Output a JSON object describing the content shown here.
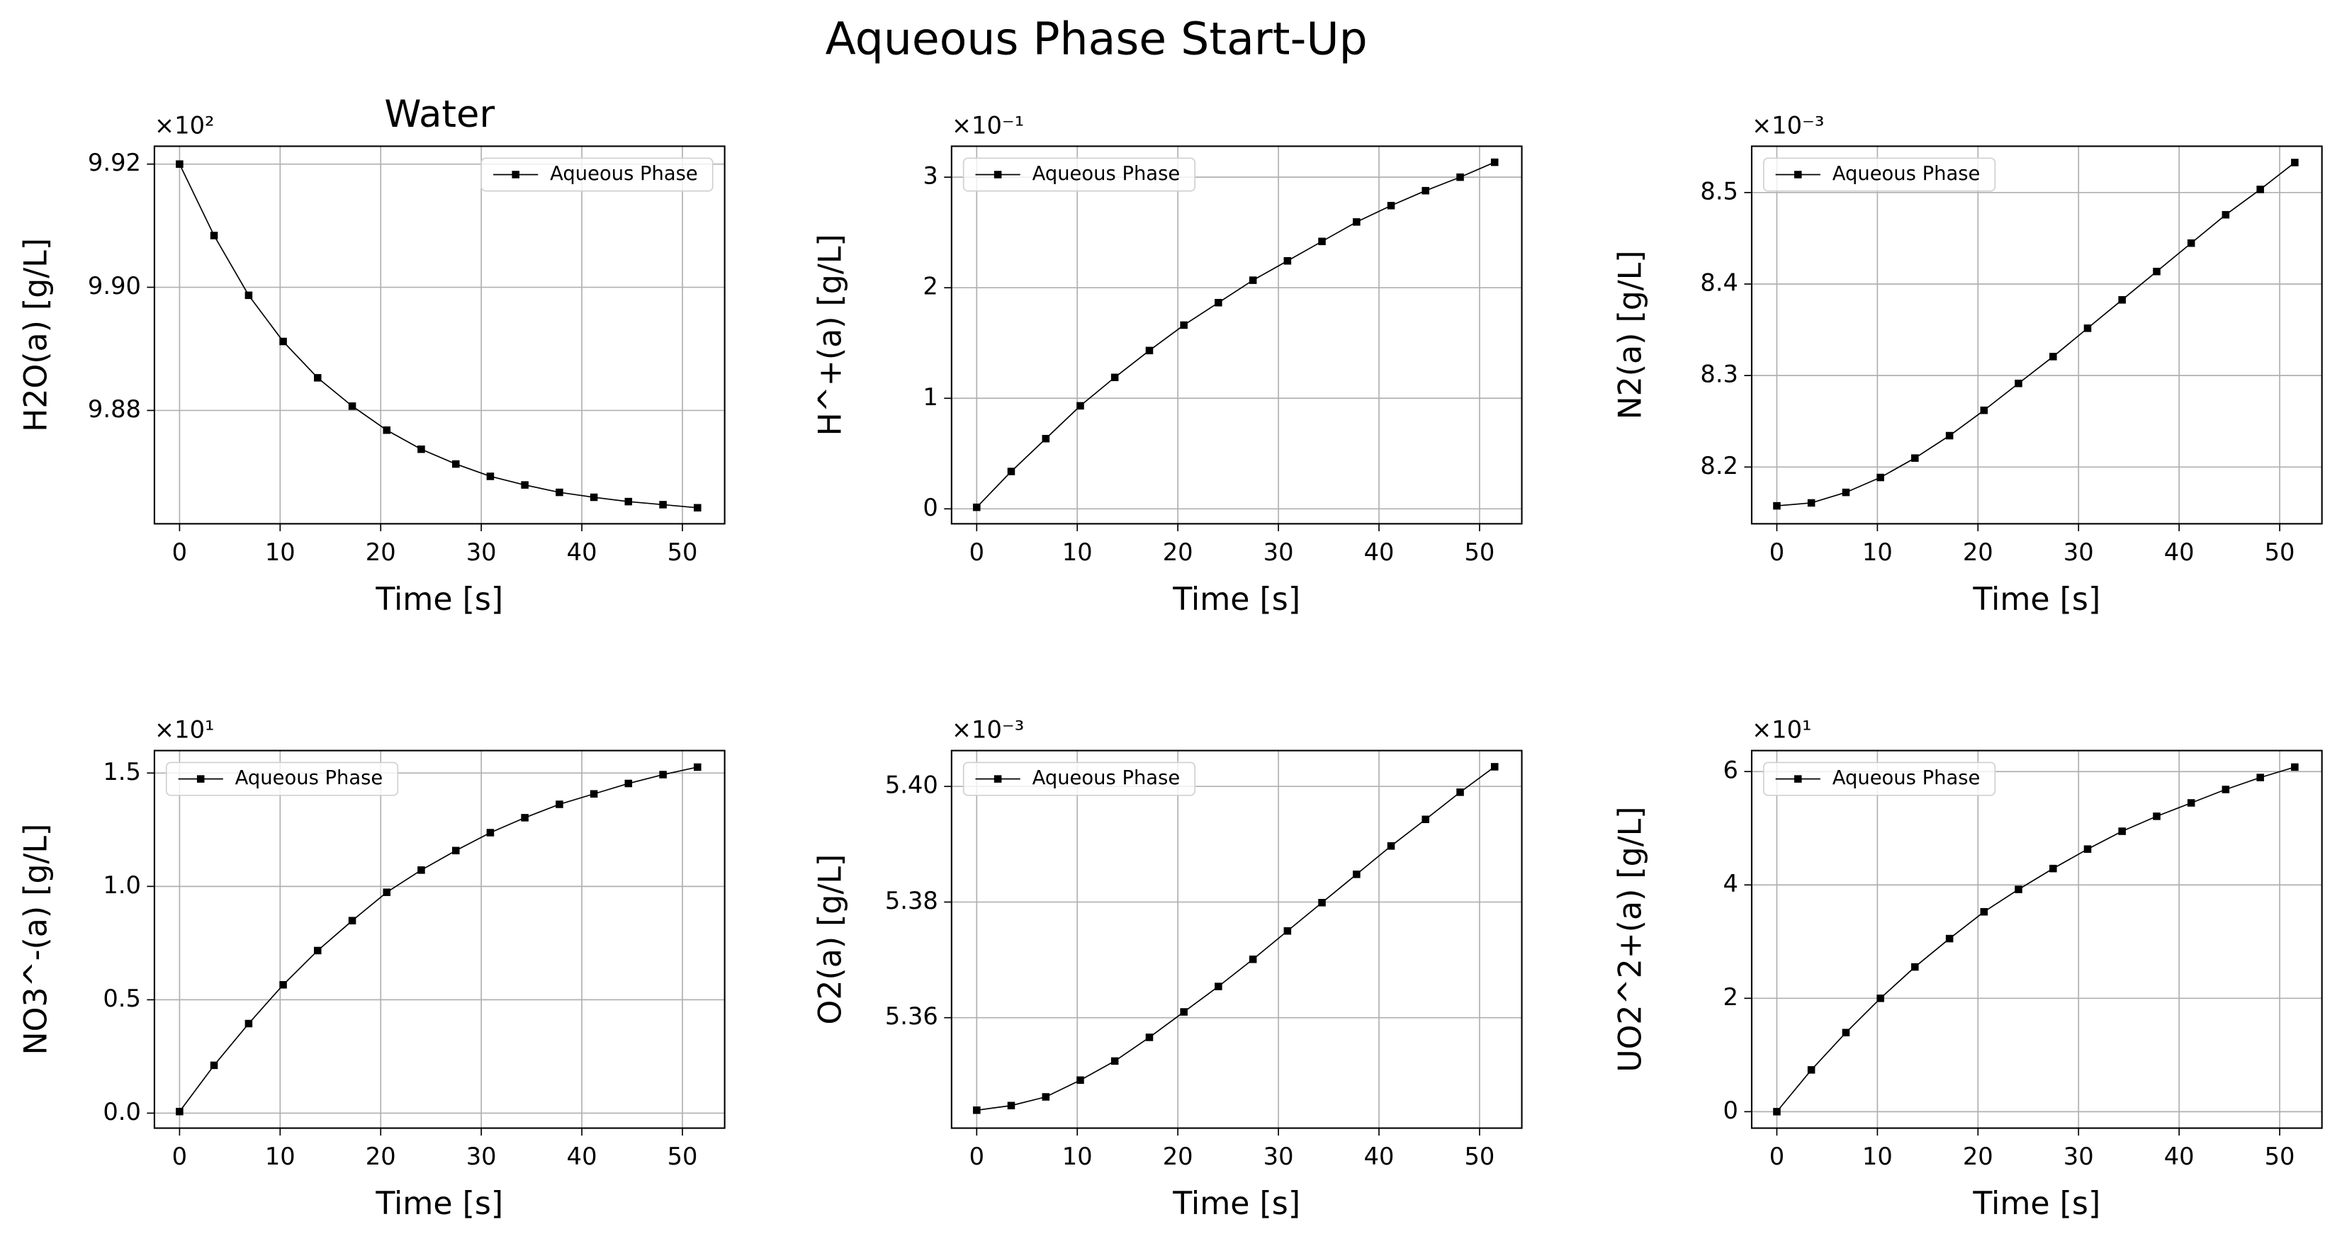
{
  "title": "Aqueous Phase Start-Up",
  "chart_data": [
    {
      "type": "line",
      "title": "Water",
      "x_label": "Time [s]",
      "y_label": "H2O(a) [g/L]",
      "offset_label": "×10²",
      "x": [
        0,
        3.43,
        6.87,
        10.3,
        13.73,
        17.17,
        20.6,
        24.03,
        27.47,
        30.9,
        34.33,
        37.77,
        41.2,
        44.63,
        48.07,
        51.5
      ],
      "series": [
        {
          "name": "Aqueous Phase",
          "color": "#000000",
          "values": [
            9.92,
            9.9084,
            9.8987,
            9.8912,
            9.8853,
            9.8807,
            9.8768,
            9.8737,
            9.8713,
            9.8693,
            9.8679,
            9.8667,
            9.8659,
            9.8652,
            9.8647,
            9.8642
          ]
        }
      ],
      "xlim": [
        -2.5,
        54.2
      ],
      "ylim": [
        9.8616,
        9.9229
      ],
      "xticks": [
        0,
        10,
        20,
        30,
        40,
        50
      ],
      "yticks": [
        {
          "value": 9.88,
          "label": "9.88"
        },
        {
          "value": 9.9,
          "label": "9.90"
        },
        9.92
      ],
      "grid": true,
      "legend": "upper right"
    },
    {
      "type": "line",
      "x_label": "Time [s]",
      "y_label": "H^+(a) [g/L]",
      "offset_label": "×10⁻¹",
      "x": [
        0,
        3.43,
        6.87,
        10.3,
        13.73,
        17.17,
        20.6,
        24.03,
        27.47,
        30.9,
        34.33,
        37.77,
        41.2,
        44.63,
        48.07,
        51.5
      ],
      "series": [
        {
          "name": "Aqueous Phase",
          "color": "#000000",
          "values": [
            0.014,
            0.338,
            0.635,
            0.932,
            1.189,
            1.432,
            1.662,
            1.865,
            2.068,
            2.243,
            2.419,
            2.595,
            2.743,
            2.878,
            3.0,
            3.135
          ]
        }
      ],
      "xlim": [
        -2.5,
        54.2
      ],
      "ylim": [
        -0.135,
        3.28
      ],
      "xticks": [
        0,
        10,
        20,
        30,
        40,
        50
      ],
      "yticks": [
        0,
        1,
        2,
        3
      ],
      "grid": true,
      "legend": "upper left"
    },
    {
      "type": "line",
      "x_label": "Time [s]",
      "y_label": "N2(a) [g/L]",
      "offset_label": "×10⁻³",
      "x": [
        0,
        3.43,
        6.87,
        10.3,
        13.73,
        17.17,
        20.6,
        24.03,
        27.47,
        30.9,
        34.33,
        37.77,
        41.2,
        44.63,
        48.07,
        51.5
      ],
      "series": [
        {
          "name": "Aqueous Phase",
          "color": "#000000",
          "values": [
            8.1576,
            8.1608,
            8.1723,
            8.1886,
            8.2098,
            8.2343,
            8.262,
            8.2914,
            8.3207,
            8.3517,
            8.3827,
            8.4137,
            8.4447,
            8.4757,
            8.5034,
            8.5328
          ]
        }
      ],
      "xlim": [
        -2.5,
        54.2
      ],
      "ylim": [
        8.138,
        8.5506
      ],
      "xticks": [
        0,
        10,
        20,
        30,
        40,
        50
      ],
      "yticks": [
        8.2,
        8.3,
        8.4,
        8.5
      ],
      "grid": true,
      "legend": "upper left"
    },
    {
      "type": "line",
      "x_label": "Time [s]",
      "y_label": "NO3^-(a) [g/L]",
      "offset_label": "×10¹",
      "x": [
        0,
        3.43,
        6.87,
        10.3,
        13.73,
        17.17,
        20.6,
        24.03,
        27.47,
        30.9,
        34.33,
        37.77,
        41.2,
        44.63,
        48.07,
        51.5
      ],
      "series": [
        {
          "name": "Aqueous Phase",
          "color": "#000000",
          "values": [
            0.007,
            0.211,
            0.395,
            0.566,
            0.717,
            0.849,
            0.974,
            1.072,
            1.158,
            1.237,
            1.303,
            1.362,
            1.408,
            1.454,
            1.493,
            1.526
          ]
        }
      ],
      "xlim": [
        -2.5,
        54.2
      ],
      "ylim": [
        -0.066,
        1.599
      ],
      "xticks": [
        0,
        10,
        20,
        30,
        40,
        50
      ],
      "yticks": [
        {
          "value": 0,
          "label": "0.0"
        },
        0.5,
        {
          "value": 1,
          "label": "1.0"
        },
        1.5
      ],
      "grid": true,
      "legend": "upper left"
    },
    {
      "type": "line",
      "x_label": "Time [s]",
      "y_label": "O2(a) [g/L]",
      "offset_label": "×10⁻³",
      "x": [
        0,
        3.43,
        6.87,
        10.3,
        13.73,
        17.17,
        20.6,
        24.03,
        27.47,
        30.9,
        34.33,
        37.77,
        41.2,
        44.63,
        48.07,
        51.5
      ],
      "series": [
        {
          "name": "Aqueous Phase",
          "color": "#000000",
          "values": [
            5.344,
            5.3448,
            5.3463,
            5.3492,
            5.3525,
            5.3566,
            5.361,
            5.3654,
            5.3701,
            5.375,
            5.3799,
            5.3848,
            5.3897,
            5.3943,
            5.399,
            5.4034
          ]
        }
      ],
      "xlim": [
        -2.5,
        54.2
      ],
      "ylim": [
        5.3409,
        5.4062
      ],
      "xticks": [
        0,
        10,
        20,
        30,
        40,
        50
      ],
      "yticks": [
        5.36,
        5.38,
        {
          "value": 5.4,
          "label": "5.40"
        }
      ],
      "grid": true,
      "legend": "upper left"
    },
    {
      "type": "line",
      "x_label": "Time [s]",
      "y_label": "UO2^2+(a) [g/L]",
      "offset_label": "×10¹",
      "x": [
        0,
        3.43,
        6.87,
        10.3,
        13.73,
        17.17,
        20.6,
        24.03,
        27.47,
        30.9,
        34.33,
        37.77,
        41.2,
        44.63,
        48.07,
        51.5
      ],
      "series": [
        {
          "name": "Aqueous Phase",
          "color": "#000000",
          "values": [
            0,
            0.737,
            1.395,
            2.0,
            2.553,
            3.053,
            3.526,
            3.921,
            4.289,
            4.632,
            4.947,
            5.211,
            5.447,
            5.684,
            5.895,
            6.079
          ]
        }
      ],
      "xlim": [
        -2.5,
        54.2
      ],
      "ylim": [
        -0.29,
        6.37
      ],
      "xticks": [
        0,
        10,
        20,
        30,
        40,
        50
      ],
      "yticks": [
        0,
        2,
        4,
        6
      ],
      "grid": true,
      "legend": "upper left"
    }
  ]
}
